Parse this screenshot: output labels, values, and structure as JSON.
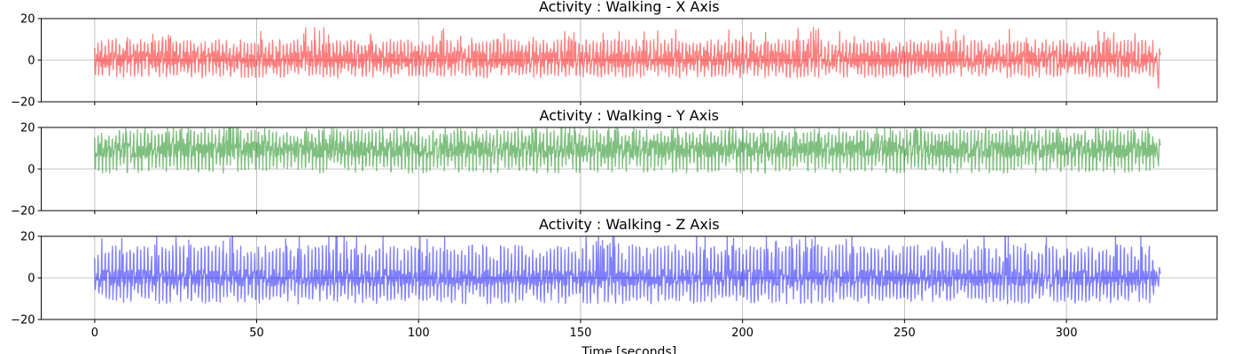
{
  "chart_data": [
    {
      "type": "line",
      "title": "Activity : Walking - X Axis",
      "series": [
        {
          "name": "",
          "color": "#ff0000",
          "opacity": 0.5,
          "center": 0.5,
          "pos_amp": 9.5,
          "neg_amp": 9.0,
          "tail_min": -13.5,
          "seed": 11
        }
      ],
      "ylim": [
        -20,
        20
      ],
      "yticks": [
        -20,
        0,
        20
      ],
      "xlim": [
        -16.5,
        346.5
      ],
      "xticks": [
        0,
        50,
        100,
        150,
        200,
        250,
        300
      ],
      "show_xtick_labels": false,
      "x_end": 329,
      "grid": true
    },
    {
      "type": "line",
      "title": "Activity : Walking - Y Axis",
      "series": [
        {
          "name": "",
          "color": "#008000",
          "opacity": 0.5,
          "center": 9.5,
          "pos_amp": 9.5,
          "neg_amp": 11.5,
          "tail_min": 1.5,
          "seed": 23
        }
      ],
      "ylim": [
        -20,
        20
      ],
      "yticks": [
        -20,
        0,
        20
      ],
      "xlim": [
        -16.5,
        346.5
      ],
      "xticks": [
        0,
        50,
        100,
        150,
        200,
        250,
        300
      ],
      "show_xtick_labels": false,
      "x_end": 329,
      "grid": true
    },
    {
      "type": "line",
      "title": "Activity : Walking - Z Axis",
      "series": [
        {
          "name": "",
          "color": "#0000ff",
          "opacity": 0.5,
          "center": 0.0,
          "pos_amp": 16.0,
          "neg_amp": 12.5,
          "tail_min": -4.0,
          "seed": 37
        }
      ],
      "ylim": [
        -20,
        20
      ],
      "yticks": [
        -20,
        0,
        20
      ],
      "xlim": [
        -16.5,
        346.5
      ],
      "xticks": [
        0,
        50,
        100,
        150,
        200,
        250,
        300
      ],
      "show_xtick_labels": true,
      "x_end": 329,
      "xlabel": "Time [seconds]",
      "grid": true
    }
  ]
}
